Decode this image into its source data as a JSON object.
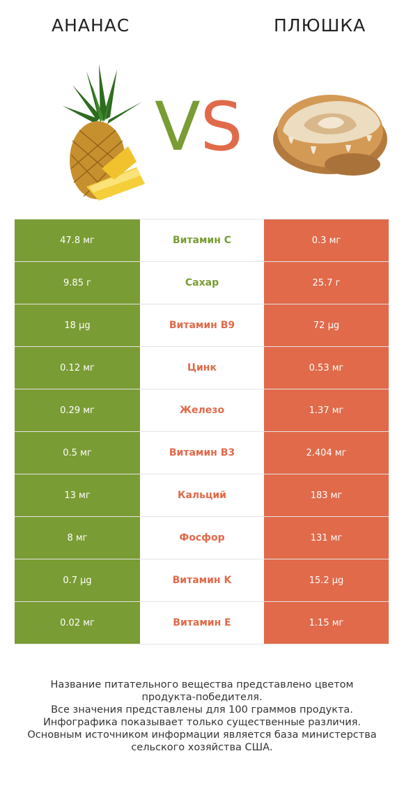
{
  "left_title": "АНАНАС",
  "right_title": "ПЛЮШКА",
  "vs": {
    "v": "V",
    "s": "S"
  },
  "colors": {
    "green": "#7a9c34",
    "orange": "#e06a4a"
  },
  "rows": [
    {
      "left": "47.8 мг",
      "name": "Витамин C",
      "right": "0.3 мг",
      "winner": "left"
    },
    {
      "left": "9.85 г",
      "name": "Сахар",
      "right": "25.7 г",
      "winner": "left"
    },
    {
      "left": "18 µg",
      "name": "Витамин B9",
      "right": "72 µg",
      "winner": "right"
    },
    {
      "left": "0.12 мг",
      "name": "Цинк",
      "right": "0.53 мг",
      "winner": "right"
    },
    {
      "left": "0.29 мг",
      "name": "Железо",
      "right": "1.37 мг",
      "winner": "right"
    },
    {
      "left": "0.5 мг",
      "name": "Витамин B3",
      "right": "2.404 мг",
      "winner": "right"
    },
    {
      "left": "13 мг",
      "name": "Кальций",
      "right": "183 мг",
      "winner": "right"
    },
    {
      "left": "8 мг",
      "name": "Фосфор",
      "right": "131 мг",
      "winner": "right"
    },
    {
      "left": "0.7 µg",
      "name": "Витамин K",
      "right": "15.2 µg",
      "winner": "right"
    },
    {
      "left": "0.02 мг",
      "name": "Витамин E",
      "right": "1.15 мг",
      "winner": "right"
    }
  ],
  "footer_lines": [
    "Название питательного вещества представлено цветом",
    "продукта-победителя.",
    "Все значения представлены для 100 граммов продукта.",
    "Инфографика показывает только существенные различия.",
    "Основным источником информации является база министерства",
    "сельского хозяйства США."
  ]
}
